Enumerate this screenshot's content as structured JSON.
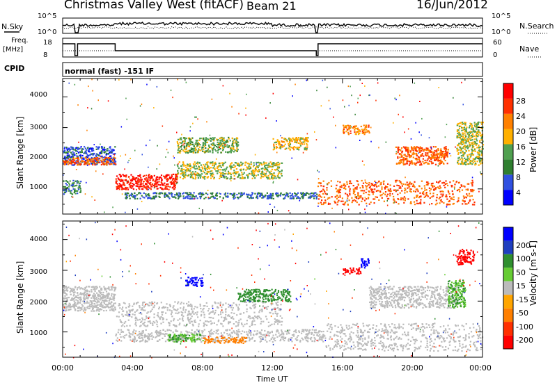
{
  "header": {
    "title": "Christmas Valley West (fitACF)",
    "beam": "Beam 21",
    "date": "16/Jun/2012"
  },
  "strips": {
    "nsky": {
      "label": "N.Sky",
      "ticks_left": [
        "10^5",
        "10^0"
      ],
      "right_label": "N.Search",
      "ticks_right": [
        "10^5",
        "10^0"
      ]
    },
    "freq": {
      "label_line1": "Freq.",
      "label_line2": "[MHz]",
      "ticks_left": [
        "18",
        "8"
      ],
      "right_label": "Nave",
      "ticks_right": [
        "60",
        "0"
      ]
    },
    "cpid": {
      "label": "CPID",
      "text": "normal (fast) -151 IF"
    }
  },
  "colors": {
    "power": [
      "#0000ff",
      "#3050e0",
      "#2f7f30",
      "#50a050",
      "#ffb000",
      "#ff8000",
      "#ff3000",
      "#ff0000"
    ],
    "velocity": [
      "#0000ff",
      "#1f3fbf",
      "#2f8f2f",
      "#66cc33",
      "#bbbbbb",
      "#ffa500",
      "#ff7f00",
      "#ff3000",
      "#ff0000"
    ],
    "ground_scatter": "#bbbbbb"
  },
  "chart_data": [
    {
      "type": "heatmap",
      "name": "power-panel",
      "ylabel": "Slant Range [km]",
      "x_range": [
        "00:00",
        "24:00"
      ],
      "ylim": [
        180,
        4600
      ],
      "yticks": [
        1000,
        2000,
        3000,
        4000
      ],
      "colorbar": {
        "label": "Power [dB]",
        "tick_labels": [
          "28",
          "24",
          "20",
          "16",
          "12",
          "8",
          "4"
        ],
        "range": [
          0,
          32
        ]
      },
      "features": [
        {
          "t0": 0.0,
          "t1": 3.0,
          "r0": 1800,
          "r1": 2400,
          "value": 6
        },
        {
          "t0": 0.0,
          "t1": 3.0,
          "r0": 1800,
          "r1": 2050,
          "value": 24
        },
        {
          "t0": 0.0,
          "t1": 1.0,
          "r0": 850,
          "r1": 1300,
          "value": 10
        },
        {
          "t0": 3.0,
          "t1": 6.5,
          "r0": 1000,
          "r1": 1500,
          "value": 28
        },
        {
          "t0": 6.5,
          "t1": 12.5,
          "r0": 1350,
          "r1": 1900,
          "value": 16
        },
        {
          "t0": 3.5,
          "t1": 14.5,
          "r0": 700,
          "r1": 900,
          "value": 8
        },
        {
          "t0": 14.5,
          "t1": 23.5,
          "r0": 500,
          "r1": 1300,
          "value": 24
        },
        {
          "t0": 6.5,
          "t1": 10.0,
          "r0": 2200,
          "r1": 2700,
          "value": 14
        },
        {
          "t0": 12.0,
          "t1": 14.0,
          "r0": 2300,
          "r1": 2700,
          "value": 18
        },
        {
          "t0": 16.0,
          "t1": 17.5,
          "r0": 2800,
          "r1": 3100,
          "value": 22
        },
        {
          "t0": 19.0,
          "t1": 22.0,
          "r0": 1800,
          "r1": 2400,
          "value": 24
        },
        {
          "t0": 22.5,
          "t1": 24.0,
          "r0": 1800,
          "r1": 3200,
          "value": 16
        }
      ]
    },
    {
      "type": "heatmap",
      "name": "velocity-panel",
      "ylabel": "Slant Range [km]",
      "xlabel": "Time UT",
      "x_range": [
        "00:00",
        "24:00"
      ],
      "xticks": [
        "00:00",
        "04:00",
        "08:00",
        "12:00",
        "16:00",
        "20:00",
        "00:00"
      ],
      "ylim": [
        180,
        4600
      ],
      "yticks": [
        1000,
        2000,
        3000,
        4000
      ],
      "colorbar": {
        "label": "Velocity [m s-1]",
        "tick_labels": [
          "200",
          "100",
          "50",
          "15",
          "-15",
          "-50",
          "-100",
          "-200"
        ],
        "range": [
          -250,
          250
        ]
      },
      "features": [
        {
          "t0": 0.0,
          "t1": 3.0,
          "r0": 1700,
          "r1": 2500,
          "value": 0
        },
        {
          "t0": 3.0,
          "t1": 12.5,
          "r0": 1200,
          "r1": 2000,
          "value": 0
        },
        {
          "t0": 3.0,
          "t1": 15.0,
          "r0": 700,
          "r1": 1100,
          "value": 0
        },
        {
          "t0": 15.0,
          "t1": 24.0,
          "r0": 400,
          "r1": 1300,
          "value": 0
        },
        {
          "t0": 17.5,
          "t1": 22.5,
          "r0": 1800,
          "r1": 2500,
          "value": 0
        },
        {
          "t0": 7.0,
          "t1": 8.0,
          "r0": 2500,
          "r1": 2800,
          "value": 220
        },
        {
          "t0": 16.0,
          "t1": 17.0,
          "r0": 2900,
          "r1": 3100,
          "value": -200
        },
        {
          "t0": 17.0,
          "t1": 17.5,
          "r0": 3100,
          "r1": 3400,
          "value": 200
        },
        {
          "t0": 22.5,
          "t1": 23.5,
          "r0": 3200,
          "r1": 3700,
          "value": -200
        },
        {
          "t0": 6.0,
          "t1": 8.0,
          "r0": 700,
          "r1": 950,
          "value": 30
        },
        {
          "t0": 10.0,
          "t1": 13.0,
          "r0": 2000,
          "r1": 2400,
          "value": 40
        },
        {
          "t0": 22.0,
          "t1": 23.0,
          "r0": 1800,
          "r1": 2700,
          "value": 30
        },
        {
          "t0": 8.0,
          "t1": 10.5,
          "r0": 650,
          "r1": 850,
          "value": -50
        }
      ]
    }
  ],
  "axes": {
    "xticks": [
      "00:00",
      "04:00",
      "08:00",
      "12:00",
      "16:00",
      "20:00",
      "00:00"
    ],
    "yticks": [
      "1000",
      "2000",
      "3000",
      "4000"
    ],
    "ylabel": "Slant Range [km]",
    "xlabel": "Time UT"
  }
}
